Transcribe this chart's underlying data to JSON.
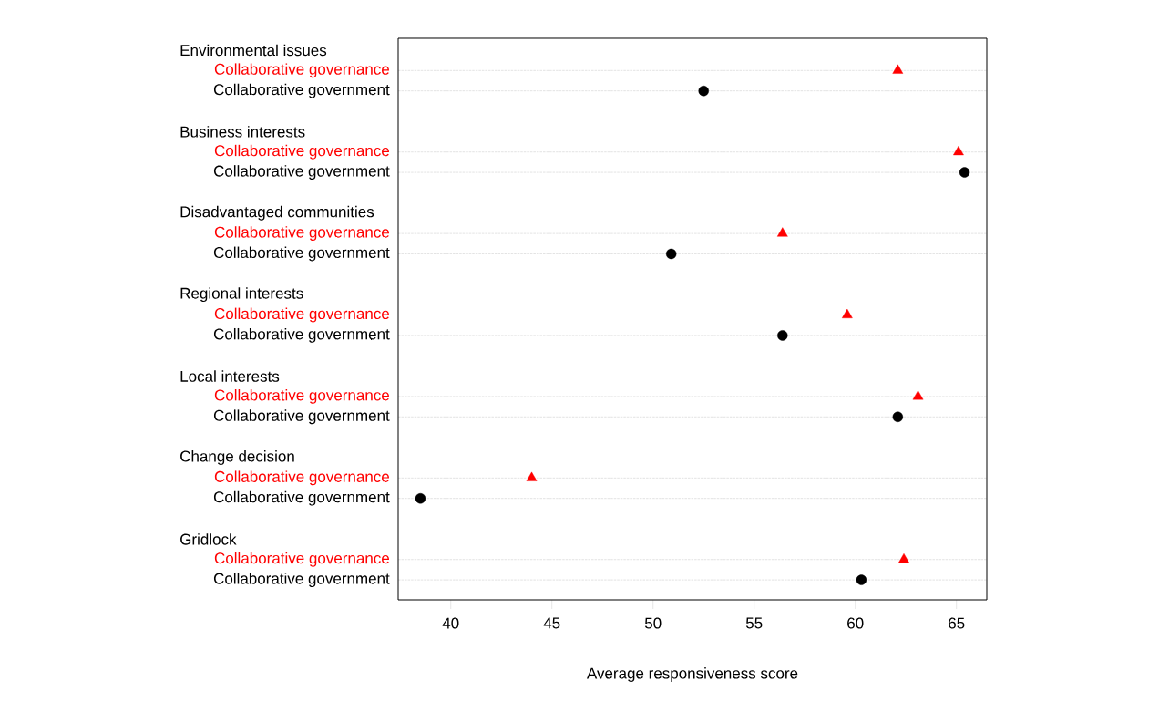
{
  "chart_data": {
    "type": "scatter",
    "orientation": "horizontal",
    "xlabel": "Average responsiveness score",
    "categories": [
      "Environmental issues",
      "Business interests",
      "Disadvantaged communities",
      "Regional interests",
      "Local interests",
      "Change decision",
      "Gridlock"
    ],
    "series": [
      {
        "name": "Collaborative governance",
        "color": "#ff0000",
        "marker": "triangle",
        "values": [
          62.1,
          65.1,
          56.4,
          59.6,
          63.1,
          44.0,
          62.4
        ]
      },
      {
        "name": "Collaborative government",
        "color": "#000000",
        "marker": "circle",
        "values": [
          52.5,
          65.4,
          50.9,
          56.4,
          62.1,
          38.5,
          60.3
        ]
      }
    ],
    "xlim": [
      37.4,
      66.5
    ],
    "xticks": [
      40,
      45,
      50,
      55,
      60,
      65
    ],
    "grid": "y"
  }
}
